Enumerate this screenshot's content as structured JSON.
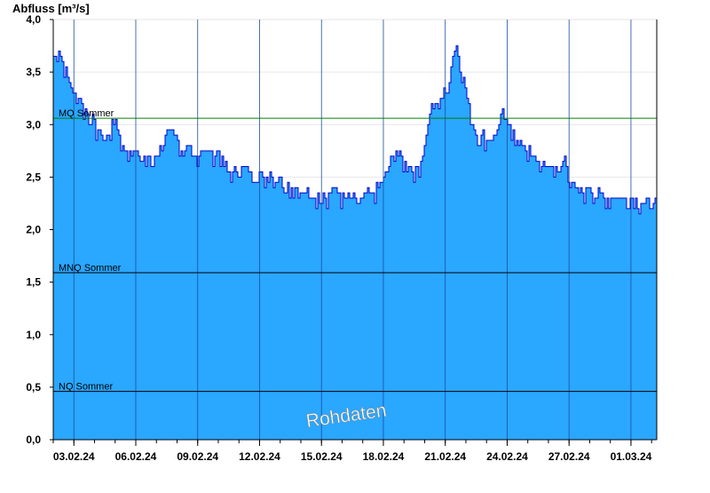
{
  "chart_data": {
    "type": "area",
    "ylabel": "Abfluss [m³/s]",
    "watermark": "Rohdaten",
    "x_range": [
      "2024-02-02T00:00",
      "2024-03-02T06:00"
    ],
    "ylim": [
      0,
      4.0
    ],
    "y_ticks": [
      0,
      0.5,
      1.0,
      1.5,
      2.0,
      2.5,
      3.0,
      3.5,
      4.0
    ],
    "y_tick_labels": [
      "0,0",
      "0,5",
      "1,0",
      "1,5",
      "2,0",
      "2,5",
      "3,0",
      "3,5",
      "4,0"
    ],
    "x_ticks": [
      "2024-02-03",
      "2024-02-06",
      "2024-02-09",
      "2024-02-12",
      "2024-02-15",
      "2024-02-18",
      "2024-02-21",
      "2024-02-24",
      "2024-02-27",
      "2024-03-01"
    ],
    "x_tick_labels": [
      "03.02.24",
      "06.02.24",
      "09.02.24",
      "12.02.24",
      "15.02.24",
      "18.02.24",
      "21.02.24",
      "24.02.24",
      "27.02.24",
      "01.03.24"
    ],
    "grid": true,
    "reference_lines": [
      {
        "label": "MQ Sommer",
        "value": 3.06,
        "color": "#008000"
      },
      {
        "label": "MNQ Sommer",
        "value": 1.59,
        "color": "#000000"
      },
      {
        "label": "NQ Sommer",
        "value": 0.46,
        "color": "#000000"
      }
    ],
    "colors": {
      "fill": "#2aa7ff",
      "line": "#0000cc",
      "grid": "#e6e6e6",
      "day_line": "#1a4fa0"
    },
    "series": [
      {
        "x": [
          "2024-02-02T00:00",
          "2024-02-02T06:00",
          "2024-02-02T12:00",
          "2024-02-02T18:00",
          "2024-02-03T00:00",
          "2024-02-03T06:00",
          "2024-02-03T12:00",
          "2024-02-03T18:00",
          "2024-02-04T00:00",
          "2024-02-04T06:00",
          "2024-02-04T12:00",
          "2024-02-04T18:00",
          "2024-02-05T00:00",
          "2024-02-05T06:00",
          "2024-02-05T12:00",
          "2024-02-05T18:00",
          "2024-02-06T00:00",
          "2024-02-06T06:00",
          "2024-02-06T12:00",
          "2024-02-06T18:00",
          "2024-02-07T00:00",
          "2024-02-07T06:00",
          "2024-02-07T12:00",
          "2024-02-07T18:00",
          "2024-02-08T00:00",
          "2024-02-08T06:00",
          "2024-02-08T12:00",
          "2024-02-08T18:00",
          "2024-02-09T00:00",
          "2024-02-09T06:00",
          "2024-02-09T12:00",
          "2024-02-09T18:00",
          "2024-02-10T00:00",
          "2024-02-10T06:00",
          "2024-02-10T12:00",
          "2024-02-10T18:00",
          "2024-02-11T00:00",
          "2024-02-11T06:00",
          "2024-02-11T12:00",
          "2024-02-11T18:00",
          "2024-02-12T00:00",
          "2024-02-12T06:00",
          "2024-02-12T12:00",
          "2024-02-12T18:00",
          "2024-02-13T00:00",
          "2024-02-13T06:00",
          "2024-02-13T12:00",
          "2024-02-13T18:00",
          "2024-02-14T00:00",
          "2024-02-14T06:00",
          "2024-02-14T12:00",
          "2024-02-14T18:00",
          "2024-02-15T00:00",
          "2024-02-15T06:00",
          "2024-02-15T12:00",
          "2024-02-15T18:00",
          "2024-02-16T00:00",
          "2024-02-16T06:00",
          "2024-02-16T12:00",
          "2024-02-16T18:00",
          "2024-02-17T00:00",
          "2024-02-17T06:00",
          "2024-02-17T12:00",
          "2024-02-17T18:00",
          "2024-02-18T00:00",
          "2024-02-18T06:00",
          "2024-02-18T12:00",
          "2024-02-18T18:00",
          "2024-02-19T00:00",
          "2024-02-19T06:00",
          "2024-02-19T12:00",
          "2024-02-19T18:00",
          "2024-02-20T00:00",
          "2024-02-20T06:00",
          "2024-02-20T12:00",
          "2024-02-20T18:00",
          "2024-02-21T00:00",
          "2024-02-21T06:00",
          "2024-02-21T12:00",
          "2024-02-21T18:00",
          "2024-02-22T00:00",
          "2024-02-22T06:00",
          "2024-02-22T12:00",
          "2024-02-22T18:00",
          "2024-02-23T00:00",
          "2024-02-23T06:00",
          "2024-02-23T12:00",
          "2024-02-23T18:00",
          "2024-02-24T00:00",
          "2024-02-24T06:00",
          "2024-02-24T12:00",
          "2024-02-24T18:00",
          "2024-02-25T00:00",
          "2024-02-25T06:00",
          "2024-02-25T12:00",
          "2024-02-25T18:00",
          "2024-02-26T00:00",
          "2024-02-26T06:00",
          "2024-02-26T12:00",
          "2024-02-26T18:00",
          "2024-02-27T00:00",
          "2024-02-27T06:00",
          "2024-02-27T12:00",
          "2024-02-27T18:00",
          "2024-02-28T00:00",
          "2024-02-28T06:00",
          "2024-02-28T12:00",
          "2024-02-28T18:00",
          "2024-02-29T00:00",
          "2024-02-29T06:00",
          "2024-02-29T12:00",
          "2024-02-29T18:00",
          "2024-03-01T00:00",
          "2024-03-01T06:00",
          "2024-03-01T12:00",
          "2024-03-01T18:00",
          "2024-03-02T00:00",
          "2024-03-02T06:00"
        ],
        "y": [
          3.65,
          3.7,
          3.55,
          3.4,
          3.3,
          3.25,
          3.15,
          3.1,
          3.0,
          2.9,
          2.85,
          2.95,
          3.05,
          2.85,
          2.75,
          2.7,
          2.75,
          2.65,
          2.7,
          2.7,
          2.7,
          2.75,
          2.95,
          2.95,
          2.85,
          2.7,
          2.75,
          2.7,
          2.7,
          2.75,
          2.75,
          2.7,
          2.75,
          2.6,
          2.55,
          2.55,
          2.6,
          2.6,
          2.55,
          2.55,
          2.55,
          2.5,
          2.55,
          2.45,
          2.5,
          2.45,
          2.4,
          2.4,
          2.35,
          2.35,
          2.3,
          2.3,
          2.35,
          2.3,
          2.4,
          2.35,
          2.3,
          2.3,
          2.3,
          2.25,
          2.3,
          2.35,
          2.35,
          2.4,
          2.5,
          2.6,
          2.75,
          2.7,
          2.65,
          2.6,
          2.55,
          2.6,
          2.8,
          3.1,
          3.2,
          3.25,
          3.3,
          3.55,
          3.75,
          3.55,
          3.3,
          3.05,
          2.9,
          2.9,
          2.85,
          2.85,
          2.95,
          3.1,
          3.0,
          2.95,
          2.8,
          2.8,
          2.75,
          2.7,
          2.65,
          2.6,
          2.6,
          2.6,
          2.55,
          2.7,
          2.5,
          2.4,
          2.35,
          2.35,
          2.4,
          2.3,
          2.35,
          2.3,
          2.3,
          2.3,
          2.3,
          2.3,
          2.3,
          2.3,
          2.25,
          2.25,
          2.3,
          2.2
        ]
      }
    ]
  }
}
